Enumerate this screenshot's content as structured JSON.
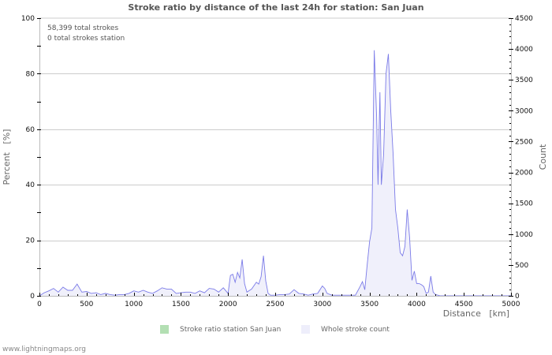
{
  "title": "Stroke ratio by distance of the last 24h for station: San Juan",
  "info": {
    "total_strokes": "58,399 total strokes",
    "station_strokes": "0 total strokes station"
  },
  "axes": {
    "left_label": "Percent   [%]",
    "right_label": "Count",
    "x_label": "Distance   [km]"
  },
  "legend": [
    {
      "label": "Stroke ratio station San Juan",
      "color": "#b3dfb3"
    },
    {
      "label": "Whole stroke count",
      "color": "#eeeefb"
    }
  ],
  "footer": "www.lightningmaps.org",
  "colors": {
    "line": "#7b7be8",
    "fill": "#f0f0fb",
    "grid": "#cccccc"
  },
  "chart_data": {
    "type": "area",
    "title": "Stroke ratio by distance of the last 24h for station: San Juan",
    "xlabel": "Distance [km]",
    "ylabel_left": "Percent [%]",
    "ylabel_right": "Count",
    "xlim": [
      0,
      5000
    ],
    "ylim_left": [
      0,
      100
    ],
    "ylim_right": [
      0,
      4500
    ],
    "x_ticks": [
      0,
      500,
      1000,
      1500,
      2000,
      2500,
      3000,
      3500,
      4000,
      4500,
      5000
    ],
    "y_left_ticks": [
      0,
      20,
      40,
      60,
      80,
      100
    ],
    "y_right_ticks": [
      0,
      500,
      1000,
      1500,
      2000,
      2500,
      3000,
      3500,
      4000,
      4500
    ],
    "grid": true,
    "legend_position": "bottom",
    "series": [
      {
        "name": "Stroke ratio station San Juan",
        "axis": "left",
        "x": [],
        "values": []
      },
      {
        "name": "Whole stroke count",
        "axis": "right",
        "x": [
          0,
          50,
          100,
          150,
          200,
          250,
          300,
          350,
          400,
          450,
          500,
          550,
          600,
          650,
          700,
          750,
          800,
          850,
          900,
          950,
          1000,
          1050,
          1100,
          1150,
          1200,
          1250,
          1300,
          1350,
          1400,
          1450,
          1500,
          1550,
          1600,
          1650,
          1700,
          1750,
          1800,
          1850,
          1900,
          1950,
          2000,
          2025,
          2050,
          2075,
          2100,
          2125,
          2150,
          2175,
          2200,
          2250,
          2300,
          2325,
          2350,
          2375,
          2400,
          2425,
          2450,
          2500,
          2550,
          2600,
          2650,
          2700,
          2750,
          2800,
          2850,
          2900,
          2950,
          3000,
          3025,
          3050,
          3100,
          3150,
          3200,
          3250,
          3300,
          3350,
          3400,
          3425,
          3450,
          3475,
          3500,
          3525,
          3550,
          3575,
          3590,
          3600,
          3610,
          3625,
          3650,
          3675,
          3700,
          3725,
          3750,
          3775,
          3800,
          3825,
          3850,
          3875,
          3900,
          3925,
          3950,
          3975,
          4000,
          4025,
          4050,
          4075,
          4100,
          4125,
          4150,
          4175,
          4200,
          4225,
          4250,
          4300,
          4500,
          5000
        ],
        "values": [
          0,
          50,
          80,
          120,
          60,
          140,
          90,
          90,
          190,
          60,
          70,
          40,
          50,
          20,
          40,
          20,
          10,
          20,
          20,
          40,
          80,
          60,
          90,
          60,
          40,
          80,
          130,
          110,
          110,
          40,
          50,
          60,
          60,
          40,
          80,
          50,
          120,
          110,
          60,
          130,
          40,
          330,
          350,
          220,
          380,
          290,
          590,
          200,
          60,
          110,
          220,
          190,
          310,
          650,
          240,
          40,
          10,
          10,
          20,
          20,
          30,
          100,
          40,
          30,
          10,
          30,
          40,
          160,
          120,
          40,
          10,
          10,
          10,
          10,
          10,
          10,
          150,
          230,
          100,
          500,
          870,
          1100,
          3980,
          2900,
          1800,
          2600,
          3300,
          1800,
          2300,
          3600,
          3920,
          3000,
          2300,
          1400,
          1100,
          700,
          650,
          800,
          1400,
          950,
          250,
          400,
          200,
          200,
          180,
          150,
          40,
          60,
          320,
          60,
          20,
          10,
          0,
          0,
          0,
          0
        ]
      }
    ]
  }
}
